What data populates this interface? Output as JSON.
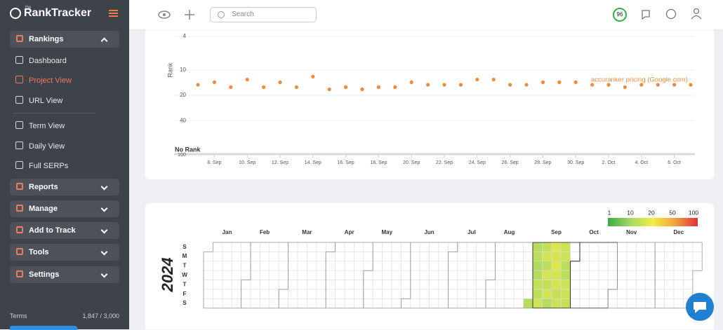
{
  "sidebar": {
    "logo_prefix": "the",
    "logo": "RankTracker",
    "nav": [
      {
        "label": "Rankings",
        "children": [
          {
            "label": "Dashboard"
          },
          {
            "label": "Project View",
            "active": true
          },
          {
            "label": "URL View"
          },
          {
            "label": "Term View"
          },
          {
            "label": "Daily View"
          },
          {
            "label": "Full SERPs"
          }
        ]
      },
      {
        "label": "Reports"
      },
      {
        "label": "Manage"
      },
      {
        "label": "Add to Track"
      },
      {
        "label": "Tools"
      },
      {
        "label": "Settings"
      }
    ],
    "footer": {
      "terms": "Terms",
      "usage": "1,847 / 3,000"
    }
  },
  "topbar": {
    "search_placeholder": "Search",
    "score": "96"
  },
  "chart_data": [
    {
      "type": "line",
      "y_label": "Rank",
      "categories": [
        null,
        "8. Sep",
        null,
        "10. Sep",
        null,
        "12. Sep",
        null,
        "14. Sep",
        null,
        "16. Sep",
        null,
        "18. Sep",
        null,
        "20. Sep",
        null,
        "22. Sep",
        null,
        "24. Sep",
        null,
        "26. Sep",
        null,
        "28. Sep",
        null,
        "30. Sep",
        null,
        "2. Oct",
        null,
        "4. Oct",
        null,
        "6. Oct",
        null
      ],
      "series": [
        {
          "name": "accuranker pricing (Google.com)",
          "color": "#f28a3d",
          "values": [
            15,
            14,
            16,
            13,
            16,
            14,
            16,
            12,
            17,
            16,
            17,
            16,
            16,
            14,
            15,
            15,
            15,
            13,
            13,
            15,
            15,
            14,
            14,
            14,
            15,
            15,
            16,
            15,
            15,
            15,
            15
          ]
        }
      ],
      "ylim": [
        4,
        100
      ],
      "yticks": [
        4,
        10,
        20,
        40,
        100
      ],
      "log_scale": true,
      "y_reversed": true,
      "no_rank_label": "No Rank",
      "grid": true
    },
    {
      "type": "heatmap",
      "year": 2024,
      "weekdays": [
        "S",
        "M",
        "T",
        "W",
        "T",
        "F",
        "S"
      ],
      "months": [
        {
          "name": "Jan",
          "values": []
        },
        {
          "name": "Feb",
          "values": []
        },
        {
          "name": "Mar",
          "values": []
        },
        {
          "name": "Apr",
          "values": []
        },
        {
          "name": "May",
          "values": []
        },
        {
          "name": "Jun",
          "values": []
        },
        {
          "name": "Jul",
          "values": []
        },
        {
          "name": "Aug",
          "values": [
            null,
            null,
            null,
            null,
            null,
            null,
            null,
            null,
            null,
            null,
            null,
            null,
            null,
            null,
            null,
            null,
            null,
            null,
            null,
            null,
            null,
            null,
            null,
            null,
            null,
            null,
            null,
            null,
            null,
            null,
            12
          ]
        },
        {
          "name": "Sep",
          "values": [
            12,
            13,
            11,
            12,
            14,
            13,
            15,
            14,
            16,
            13,
            16,
            14,
            16,
            12,
            17,
            16,
            17,
            16,
            16,
            14,
            15,
            15,
            15,
            13,
            13,
            15,
            15,
            14
          ]
        },
        {
          "name": "Oct",
          "values": []
        },
        {
          "name": "Nov",
          "values": []
        },
        {
          "name": "Dec",
          "values": []
        }
      ],
      "color_scale": [
        {
          "value": 1,
          "color": "#3aac45"
        },
        {
          "value": 10,
          "color": "#a6d865"
        },
        {
          "value": 20,
          "color": "#f3ec45"
        },
        {
          "value": 50,
          "color": "#f1a13c"
        },
        {
          "value": 100,
          "color": "#e0303a"
        }
      ]
    }
  ]
}
